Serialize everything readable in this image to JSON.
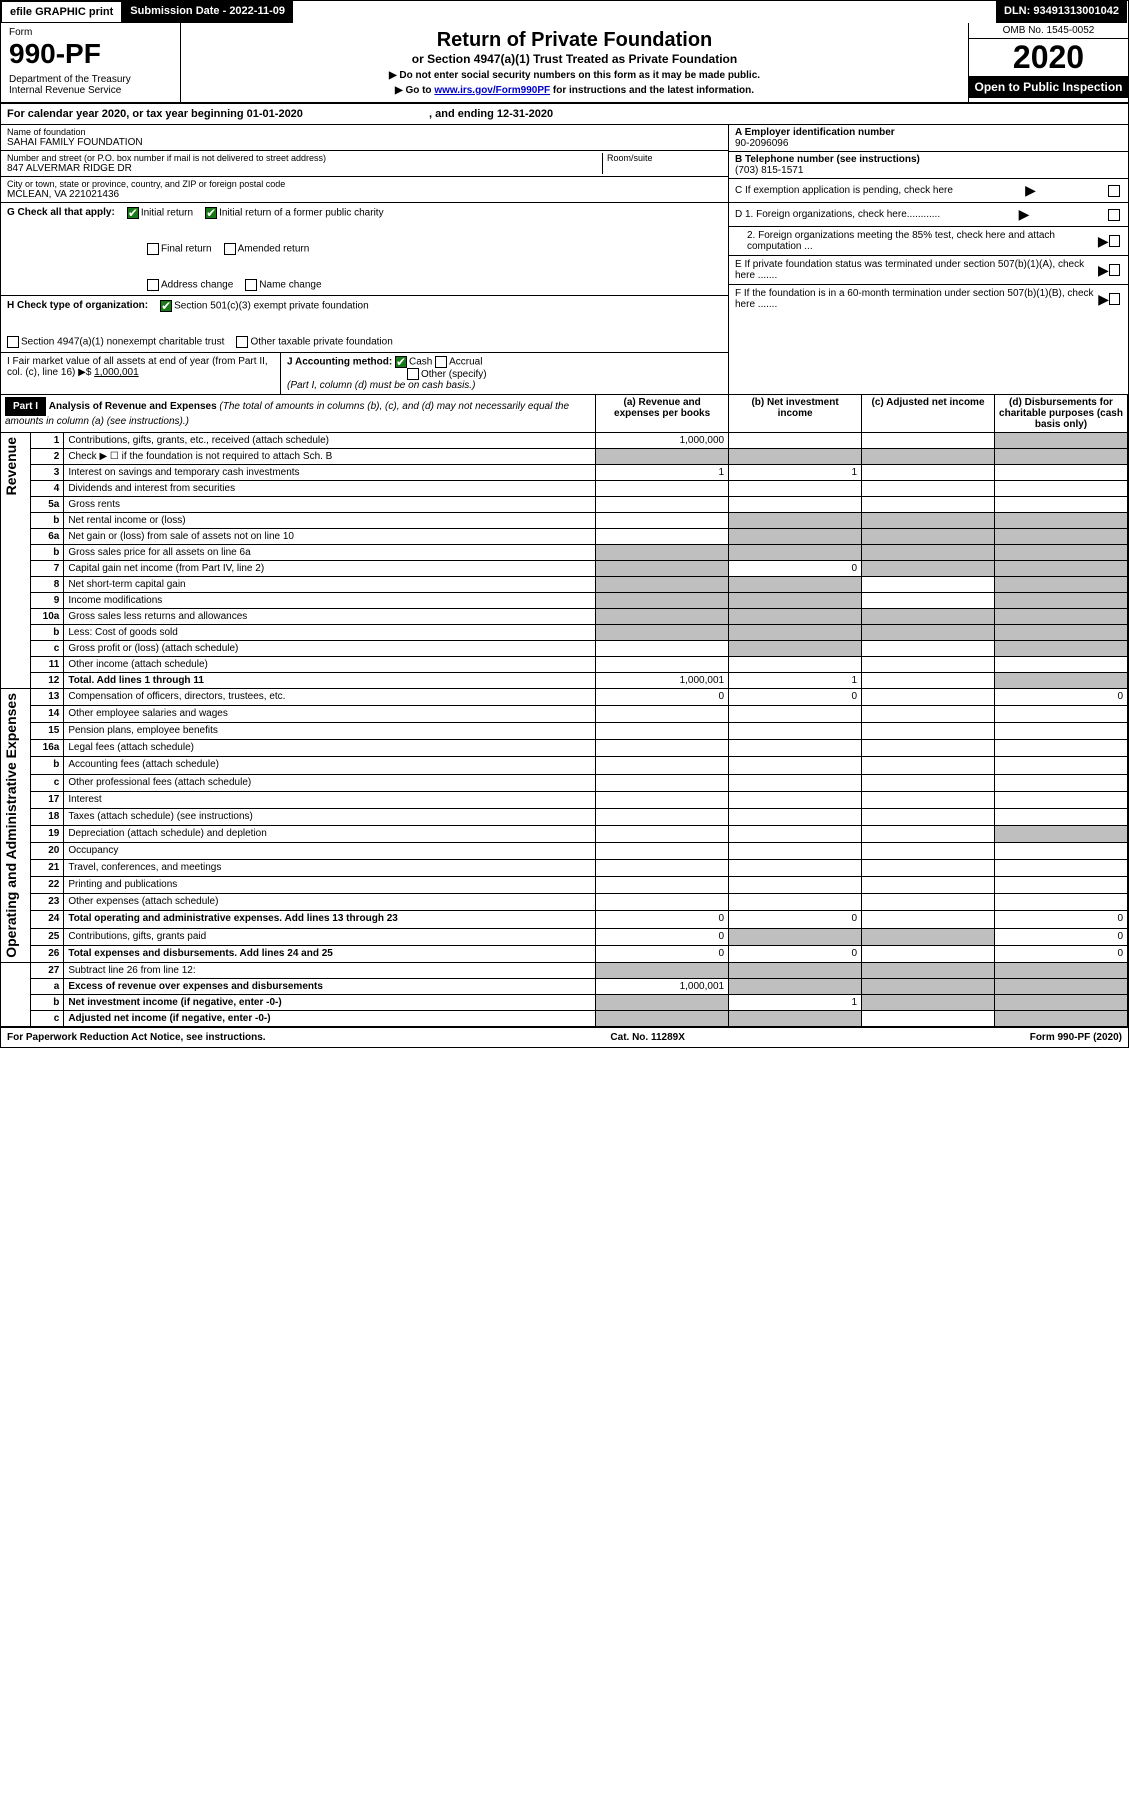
{
  "topbar": {
    "efile": "efile GRAPHIC print",
    "sub_label": "Submission Date - 2022-11-09",
    "dln": "DLN: 93491313001042"
  },
  "header": {
    "form_label": "Form",
    "form_no": "990-PF",
    "dept": "Department of the Treasury\nInternal Revenue Service",
    "title": "Return of Private Foundation",
    "subtitle": "or Section 4947(a)(1) Trust Treated as Private Foundation",
    "note1": "▶ Do not enter social security numbers on this form as it may be made public.",
    "note2": "▶ Go to www.irs.gov/Form990PF for instructions and the latest information.",
    "omb": "OMB No. 1545-0052",
    "year": "2020",
    "open": "Open to Public Inspection"
  },
  "calendar": {
    "text_a": "For calendar year 2020, or tax year beginning 01-01-2020",
    "text_b": ", and ending 12-31-2020"
  },
  "entity": {
    "name_lbl": "Name of foundation",
    "name": "SAHAI FAMILY FOUNDATION",
    "addr_lbl": "Number and street (or P.O. box number if mail is not delivered to street address)",
    "addr": "847 ALVERMAR RIDGE DR",
    "room_lbl": "Room/suite",
    "city_lbl": "City or town, state or province, country, and ZIP or foreign postal code",
    "city": "MCLEAN, VA  221021436",
    "ein_lbl": "A Employer identification number",
    "ein": "90-2096096",
    "tel_lbl": "B Telephone number (see instructions)",
    "tel": "(703) 815-1571",
    "c_lbl": "C If exemption application is pending, check here",
    "d1": "D 1. Foreign organizations, check here............",
    "d2": "2. Foreign organizations meeting the 85% test, check here and attach computation ...",
    "e_lbl": "E  If private foundation status was terminated under section 507(b)(1)(A), check here .......",
    "f_lbl": "F  If the foundation is in a 60-month termination under section 507(b)(1)(B), check here .......",
    "g_lbl": "G Check all that apply:",
    "g_opts": [
      "Initial return",
      "Initial return of a former public charity",
      "Final return",
      "Amended return",
      "Address change",
      "Name change"
    ],
    "h_lbl": "H Check type of organization:",
    "h_opts": [
      "Section 501(c)(3) exempt private foundation",
      "Section 4947(a)(1) nonexempt charitable trust",
      "Other taxable private foundation"
    ],
    "i_lbl": "I Fair market value of all assets at end of year (from Part II, col. (c), line 16) ▶$",
    "i_val": "1,000,001",
    "j_lbl": "J Accounting method:",
    "j_opts": [
      "Cash",
      "Accrual",
      "Other (specify)"
    ],
    "j_note": "(Part I, column (d) must be on cash basis.)"
  },
  "part1": {
    "label": "Part I",
    "title": "Analysis of Revenue and Expenses",
    "title_note": "(The total of amounts in columns (b), (c), and (d) may not necessarily equal the amounts in column (a) (see instructions).)",
    "cols": {
      "a": "(a)   Revenue and expenses per books",
      "b": "(b)   Net investment income",
      "c": "(c)   Adjusted net income",
      "d": "(d)  Disbursements for charitable purposes (cash basis only)"
    }
  },
  "sections": {
    "rev": "Revenue",
    "exp": "Operating and Administrative Expenses"
  },
  "lines": {
    "1": {
      "n": "1",
      "d": "Contributions, gifts, grants, etc., received (attach schedule)",
      "a": "1,000,000"
    },
    "2": {
      "n": "2",
      "d": "Check ▶ ☐ if the foundation is not required to attach Sch. B"
    },
    "3": {
      "n": "3",
      "d": "Interest on savings and temporary cash investments",
      "a": "1",
      "b": "1"
    },
    "4": {
      "n": "4",
      "d": "Dividends and interest from securities"
    },
    "5a": {
      "n": "5a",
      "d": "Gross rents"
    },
    "5b": {
      "n": "b",
      "d": "Net rental income or (loss)"
    },
    "6a": {
      "n": "6a",
      "d": "Net gain or (loss) from sale of assets not on line 10"
    },
    "6b": {
      "n": "b",
      "d": "Gross sales price for all assets on line 6a"
    },
    "7": {
      "n": "7",
      "d": "Capital gain net income (from Part IV, line 2)",
      "b": "0"
    },
    "8": {
      "n": "8",
      "d": "Net short-term capital gain"
    },
    "9": {
      "n": "9",
      "d": "Income modifications"
    },
    "10a": {
      "n": "10a",
      "d": "Gross sales less returns and allowances"
    },
    "10b": {
      "n": "b",
      "d": "Less: Cost of goods sold"
    },
    "10c": {
      "n": "c",
      "d": "Gross profit or (loss) (attach schedule)"
    },
    "11": {
      "n": "11",
      "d": "Other income (attach schedule)"
    },
    "12": {
      "n": "12",
      "d": "Total. Add lines 1 through 11",
      "a": "1,000,001",
      "b": "1",
      "bold": true
    },
    "13": {
      "n": "13",
      "d": "Compensation of officers, directors, trustees, etc.",
      "a": "0",
      "b": "0",
      "dd": "0"
    },
    "14": {
      "n": "14",
      "d": "Other employee salaries and wages"
    },
    "15": {
      "n": "15",
      "d": "Pension plans, employee benefits"
    },
    "16a": {
      "n": "16a",
      "d": "Legal fees (attach schedule)"
    },
    "16b": {
      "n": "b",
      "d": "Accounting fees (attach schedule)"
    },
    "16c": {
      "n": "c",
      "d": "Other professional fees (attach schedule)"
    },
    "17": {
      "n": "17",
      "d": "Interest"
    },
    "18": {
      "n": "18",
      "d": "Taxes (attach schedule) (see instructions)"
    },
    "19": {
      "n": "19",
      "d": "Depreciation (attach schedule) and depletion"
    },
    "20": {
      "n": "20",
      "d": "Occupancy"
    },
    "21": {
      "n": "21",
      "d": "Travel, conferences, and meetings"
    },
    "22": {
      "n": "22",
      "d": "Printing and publications"
    },
    "23": {
      "n": "23",
      "d": "Other expenses (attach schedule)"
    },
    "24": {
      "n": "24",
      "d": "Total operating and administrative expenses. Add lines 13 through 23",
      "a": "0",
      "b": "0",
      "dd": "0",
      "bold": true
    },
    "25": {
      "n": "25",
      "d": "Contributions, gifts, grants paid",
      "a": "0",
      "dd": "0"
    },
    "26": {
      "n": "26",
      "d": "Total expenses and disbursements. Add lines 24 and 25",
      "a": "0",
      "b": "0",
      "dd": "0",
      "bold": true
    },
    "27": {
      "n": "27",
      "d": "Subtract line 26 from line 12:"
    },
    "27a": {
      "n": "a",
      "d": "Excess of revenue over expenses and disbursements",
      "a": "1,000,001",
      "bold": true
    },
    "27b": {
      "n": "b",
      "d": "Net investment income (if negative, enter -0-)",
      "b": "1",
      "bold": true
    },
    "27c": {
      "n": "c",
      "d": "Adjusted net income (if negative, enter -0-)",
      "bold": true
    }
  },
  "footer": {
    "pra": "For Paperwork Reduction Act Notice, see instructions.",
    "cat": "Cat. No. 11289X",
    "form": "Form 990-PF (2020)"
  }
}
